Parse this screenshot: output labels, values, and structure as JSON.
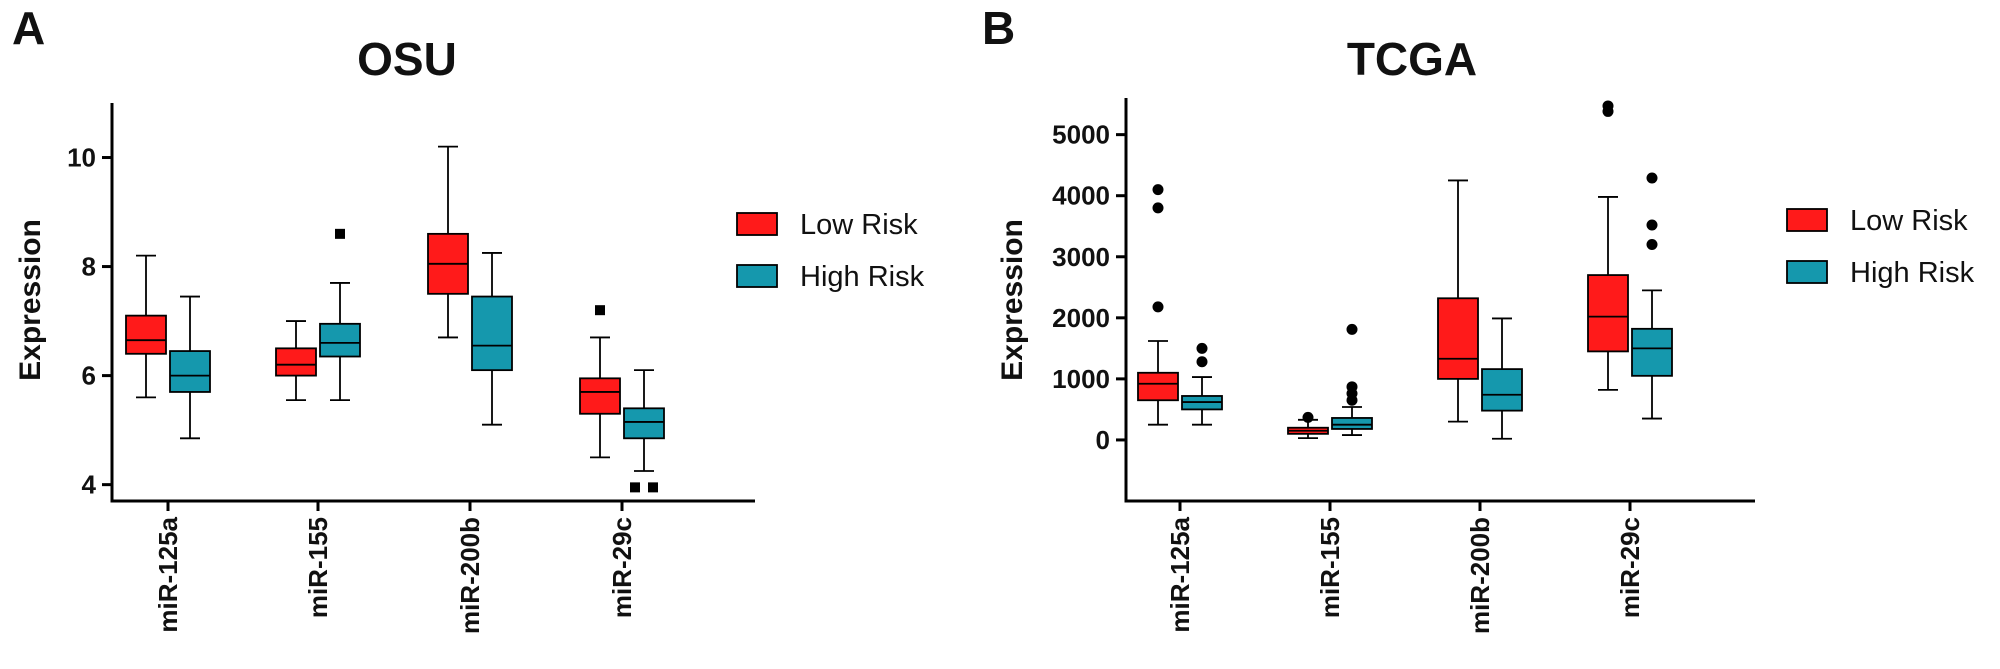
{
  "colors": {
    "low": "#ff1a1a",
    "high": "#1598ad",
    "ink": "#000000"
  },
  "panels": [
    {
      "letter": "A",
      "chart_data": {
        "type": "box",
        "title": "OSU",
        "ylabel": "Expression",
        "xlabel": "",
        "ylim": [
          3.7,
          11.0
        ],
        "yticks": [
          "4",
          "6",
          "8",
          "10"
        ],
        "categories": [
          "miR-125a",
          "miR-155",
          "miR-200b",
          "miR-29c"
        ],
        "legend": {
          "position": "right",
          "entries": [
            "Low Risk",
            "High Risk"
          ]
        },
        "series": [
          {
            "name": "Low Risk",
            "boxes": [
              {
                "category": "miR-125a",
                "min": 5.6,
                "q1": 6.4,
                "median": 6.65,
                "q3": 7.1,
                "max": 8.2,
                "outliers": []
              },
              {
                "category": "miR-155",
                "min": 5.55,
                "q1": 6.0,
                "median": 6.2,
                "q3": 6.5,
                "max": 7.0,
                "outliers": []
              },
              {
                "category": "miR-200b",
                "min": 6.7,
                "q1": 7.5,
                "median": 8.05,
                "q3": 8.6,
                "max": 10.2,
                "outliers": []
              },
              {
                "category": "miR-29c",
                "min": 4.5,
                "q1": 5.3,
                "median": 5.7,
                "q3": 5.95,
                "max": 6.7,
                "outliers": [
                  7.2
                ]
              }
            ]
          },
          {
            "name": "High Risk",
            "boxes": [
              {
                "category": "miR-125a",
                "min": 4.85,
                "q1": 5.7,
                "median": 6.0,
                "q3": 6.45,
                "max": 7.45,
                "outliers": []
              },
              {
                "category": "miR-155",
                "min": 5.55,
                "q1": 6.35,
                "median": 6.6,
                "q3": 6.95,
                "max": 7.7,
                "outliers": [
                  8.6
                ]
              },
              {
                "category": "miR-200b",
                "min": 5.1,
                "q1": 6.1,
                "median": 6.55,
                "q3": 7.45,
                "max": 8.25,
                "outliers": []
              },
              {
                "category": "miR-29c",
                "min": 4.25,
                "q1": 4.85,
                "median": 5.15,
                "q3": 5.4,
                "max": 6.1,
                "outliers": [
                  3.95,
                  3.95
                ]
              }
            ]
          }
        ]
      }
    },
    {
      "letter": "B",
      "chart_data": {
        "type": "box",
        "title": "TCGA",
        "ylabel": "Expression",
        "xlabel": "",
        "ylim": [
          -1000,
          5600
        ],
        "yticks": [
          "0",
          "1000",
          "2000",
          "3000",
          "4000",
          "5000"
        ],
        "categories": [
          "miR-125a",
          "miR-155",
          "miR-200b",
          "miR-29c"
        ],
        "legend": {
          "position": "right",
          "entries": [
            "Low Risk",
            "High Risk"
          ]
        },
        "series": [
          {
            "name": "Low Risk",
            "boxes": [
              {
                "category": "miR-125a",
                "min": 250,
                "q1": 650,
                "median": 920,
                "q3": 1100,
                "max": 1620,
                "outliers": [
                  2180,
                  3800,
                  4100
                ]
              },
              {
                "category": "miR-155",
                "min": 30,
                "q1": 100,
                "median": 150,
                "q3": 200,
                "max": 330,
                "outliers": [
                  370
                ]
              },
              {
                "category": "miR-200b",
                "min": 300,
                "q1": 1000,
                "median": 1330,
                "q3": 2320,
                "max": 4250,
                "outliers": []
              },
              {
                "category": "miR-29c",
                "min": 820,
                "q1": 1450,
                "median": 2020,
                "q3": 2700,
                "max": 3980,
                "outliers": [
                  5380,
                  5470
                ]
              }
            ]
          },
          {
            "name": "High Risk",
            "boxes": [
              {
                "category": "miR-125a",
                "min": 250,
                "q1": 500,
                "median": 620,
                "q3": 720,
                "max": 1030,
                "outliers": [
                  1280,
                  1500
                ]
              },
              {
                "category": "miR-155",
                "min": 80,
                "q1": 180,
                "median": 250,
                "q3": 360,
                "max": 540,
                "outliers": [
                  650,
                  760,
                  870,
                  1810
                ]
              },
              {
                "category": "miR-200b",
                "min": 20,
                "q1": 480,
                "median": 740,
                "q3": 1160,
                "max": 1990,
                "outliers": []
              },
              {
                "category": "miR-29c",
                "min": 350,
                "q1": 1050,
                "median": 1500,
                "q3": 1820,
                "max": 2450,
                "outliers": [
                  3200,
                  3520,
                  4290
                ]
              }
            ]
          }
        ]
      }
    }
  ]
}
